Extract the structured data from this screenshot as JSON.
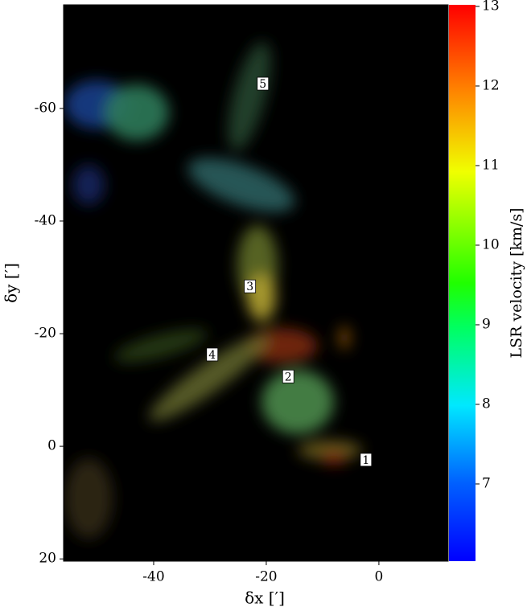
{
  "chart_data": {
    "type": "image",
    "xlabel": "δx [′]",
    "ylabel": "δy [′]",
    "xlim": [
      -56,
      12.3
    ],
    "ylim": [
      20.4,
      -78.4
    ],
    "xticks": [
      -40,
      -20,
      0
    ],
    "yticks": [
      20,
      0,
      -20,
      -40,
      -60
    ],
    "colorbar": {
      "label": "LSR velocity [km/s]",
      "lim": [
        6.03,
        13.02
      ],
      "ticks": [
        7,
        8,
        9,
        10,
        11,
        12,
        13
      ]
    },
    "annotations": [
      {
        "text": "1",
        "x": -2.3,
        "y": 2.4
      },
      {
        "text": "2",
        "x": -16.1,
        "y": -12.4
      },
      {
        "text": "3",
        "x": -22.9,
        "y": -28.4
      },
      {
        "text": "4",
        "x": -29.6,
        "y": -16.3
      },
      {
        "text": "5",
        "x": -20.6,
        "y": -64.4
      }
    ]
  }
}
